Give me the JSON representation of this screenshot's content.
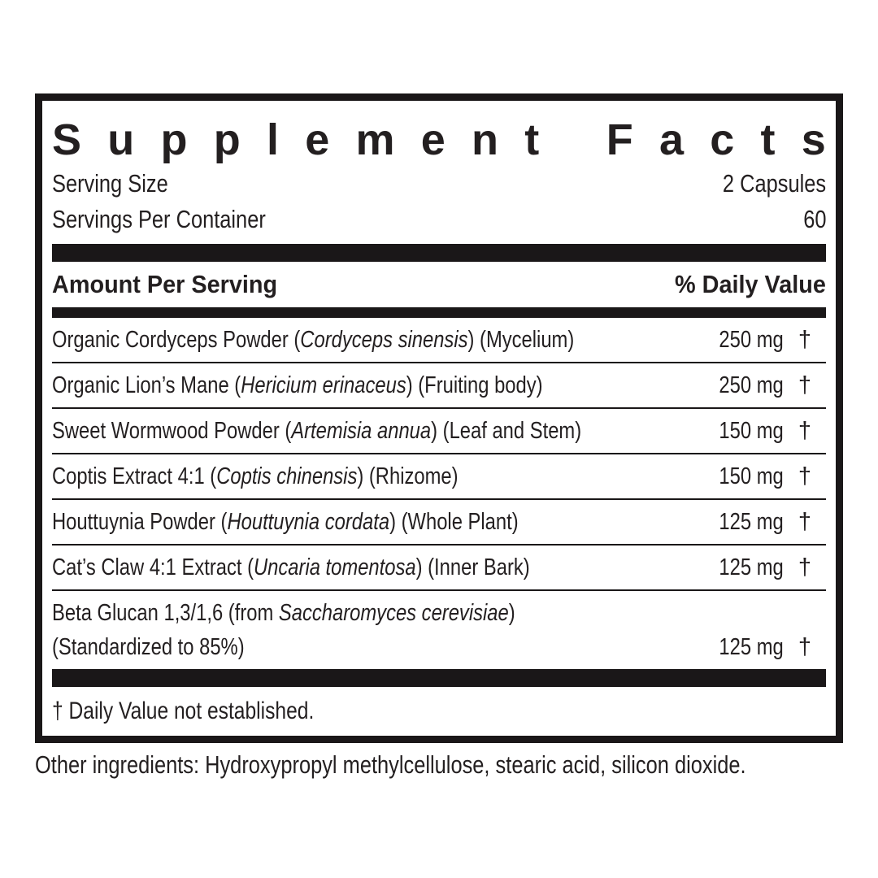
{
  "panel": {
    "title": "Supplement Facts",
    "serving_size_label": "Serving Size",
    "serving_size_value": "2 Capsules",
    "servings_per_container_label": "Servings Per Container",
    "servings_per_container_value": "60",
    "column_headers": {
      "amount": "Amount Per Serving",
      "daily_value": "% Daily Value"
    },
    "rows": [
      {
        "pre": "Organic Cordyceps Powder (",
        "sci": "Cordyceps sinensis",
        "post": ") (Mycelium)",
        "amount": "250 mg",
        "dv": "†"
      },
      {
        "pre": "Organic Lion’s Mane (",
        "sci": "Hericium erinaceus",
        "post": ") (Fruiting body)",
        "amount": "250 mg",
        "dv": "†"
      },
      {
        "pre": "Sweet Wormwood Powder (",
        "sci": "Artemisia annua",
        "post": ") (Leaf and Stem)",
        "amount": "150 mg",
        "dv": "†"
      },
      {
        "pre": "Coptis Extract 4:1 (",
        "sci": "Coptis chinensis",
        "post": ") (Rhizome)",
        "amount": "150 mg",
        "dv": "†"
      },
      {
        "pre": "Houttuynia Powder (",
        "sci": "Houttuynia cordata",
        "post": ") (Whole Plant)",
        "amount": "125 mg",
        "dv": "†"
      },
      {
        "pre": "Cat’s Claw 4:1 Extract (",
        "sci": "Uncaria tomentosa",
        "post": ") (Inner Bark)",
        "amount": "125 mg",
        "dv": "†"
      },
      {
        "pre": "Beta Glucan 1,3/1,6 (from ",
        "sci": "Saccharomyces cerevisiae",
        "post": ")",
        "line2": "(Standardized to 85%)",
        "amount": "125 mg",
        "dv": "†"
      }
    ],
    "footnote": "† Daily Value not established."
  },
  "other_ingredients": "Other ingredients: Hydroxypropyl methylcellulose, stearic acid, silicon dioxide.",
  "colors": {
    "ink": "#231f20",
    "bar": "#1a1718",
    "background": "#ffffff"
  }
}
